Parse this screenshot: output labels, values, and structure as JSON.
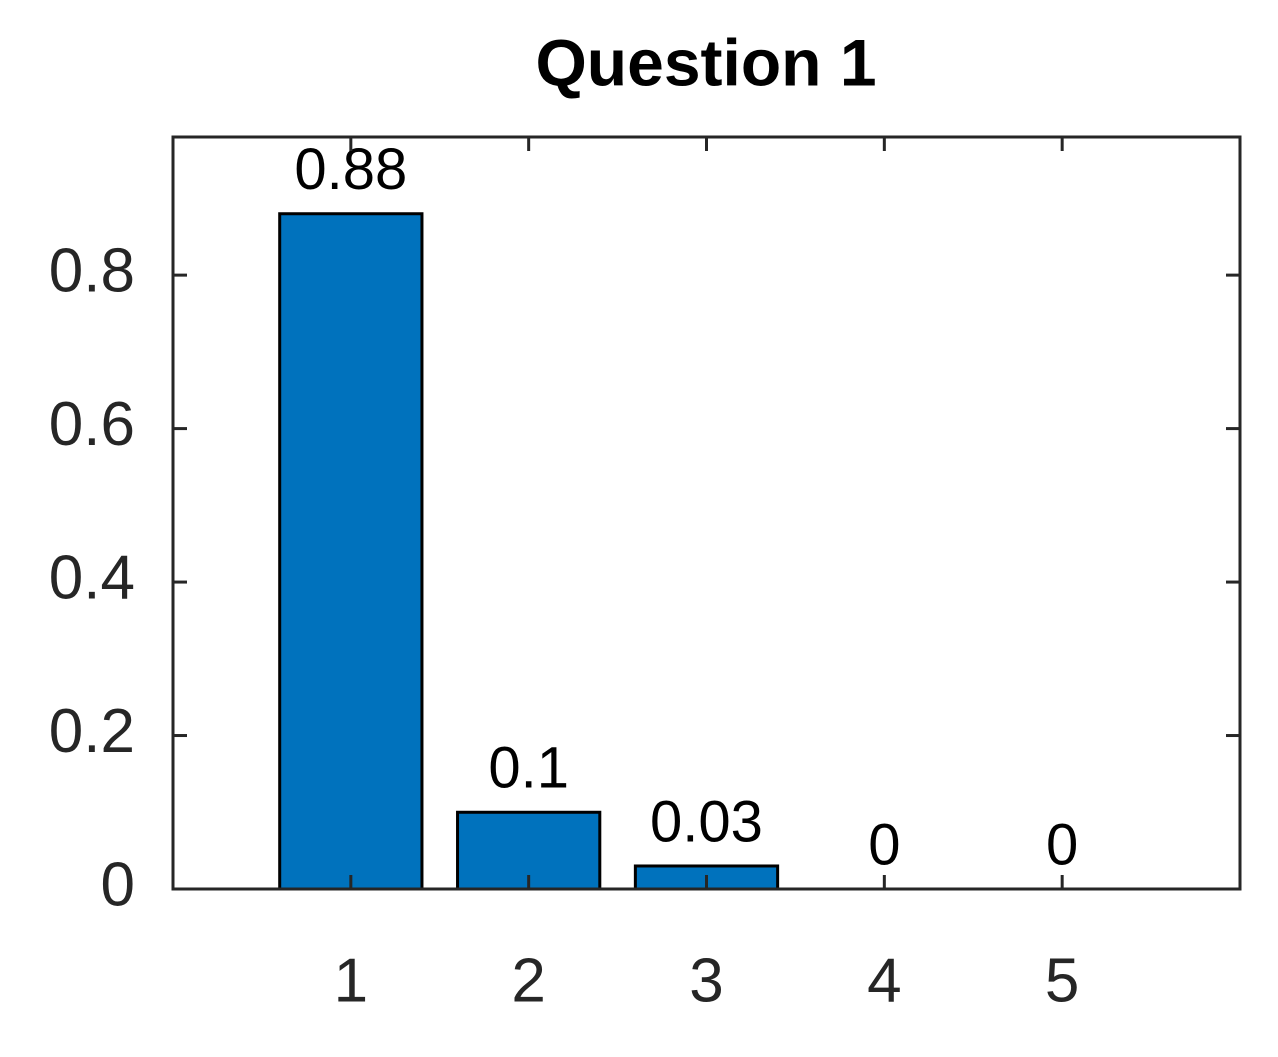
{
  "chart_data": {
    "type": "bar",
    "title": "Question 1",
    "x": [
      1,
      2,
      3,
      4,
      5
    ],
    "values": [
      0.88,
      0.1,
      0.03,
      0,
      0
    ],
    "color": "#0072bd",
    "xlim": [
      0,
      6
    ],
    "xticks": [
      1,
      2,
      3,
      4,
      5
    ],
    "ylim": [
      0,
      0.98
    ],
    "yticks": [
      0,
      0.2,
      0.4,
      0.6,
      0.8
    ],
    "grid": false
  }
}
